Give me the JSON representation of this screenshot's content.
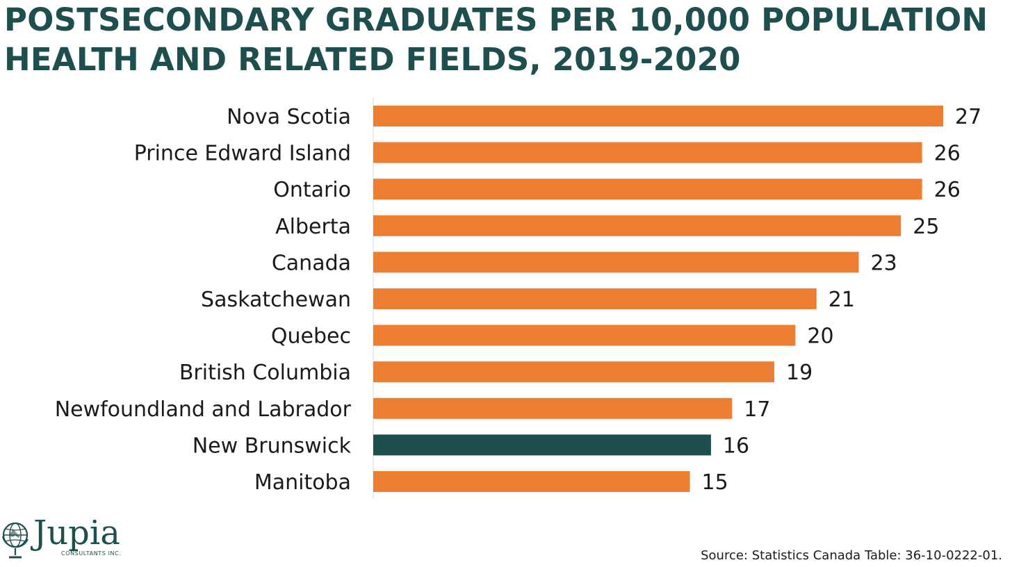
{
  "title": {
    "line1": "POSTSECONDARY GRADUATES PER 10,000 POPULATION",
    "line2": "HEALTH AND RELATED FIELDS, 2019-2020"
  },
  "chart_data": {
    "type": "bar",
    "orientation": "horizontal",
    "categories": [
      "Nova Scotia",
      "Prince Edward Island",
      "Ontario",
      "Alberta",
      "Canada",
      "Saskatchewan",
      "Quebec",
      "British Columbia",
      "Newfoundland and Labrador",
      "New Brunswick",
      "Manitoba"
    ],
    "values": [
      27,
      26,
      26,
      25,
      23,
      21,
      20,
      19,
      17,
      16,
      15
    ],
    "highlight": "New Brunswick",
    "colors": {
      "bar": "#ed7d31",
      "highlight": "#1f4e4e"
    },
    "xlim": [
      0,
      27
    ],
    "grid": false,
    "data_labels": true
  },
  "logo": {
    "name": "Jupia",
    "tagline": "CONSULTANTS INC."
  },
  "source": "Source: Statistics Canada Table: 36-10-0222-01."
}
